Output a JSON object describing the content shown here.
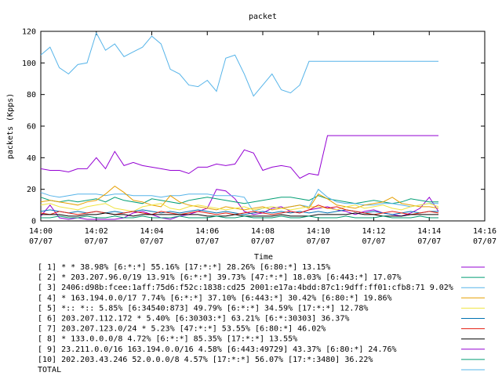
{
  "chart_data": {
    "type": "line",
    "title": "packet",
    "xlabel": "Time",
    "ylabel": "packets (Kpps)",
    "ylim": [
      0,
      120
    ],
    "yticks": [
      0,
      20,
      40,
      60,
      80,
      100,
      120
    ],
    "xlim": [
      "14:00",
      "14:16"
    ],
    "xticks": [
      {
        "time": "14:00",
        "date": "07/07"
      },
      {
        "time": "14:02",
        "date": "07/07"
      },
      {
        "time": "14:04",
        "date": "07/07"
      },
      {
        "time": "14:06",
        "date": "07/07"
      },
      {
        "time": "14:08",
        "date": "07/07"
      },
      {
        "time": "14:10",
        "date": "07/07"
      },
      {
        "time": "14:12",
        "date": "07/07"
      },
      {
        "time": "14:14",
        "date": "07/07"
      },
      {
        "time": "14:16",
        "date": "07/07"
      }
    ],
    "grid": false,
    "legend_position": "bottom",
    "x": [
      "14:00:00",
      "14:00:20",
      "14:00:40",
      "14:01:00",
      "14:01:20",
      "14:01:40",
      "14:02:00",
      "14:02:20",
      "14:02:40",
      "14:03:00",
      "14:03:20",
      "14:03:40",
      "14:04:00",
      "14:04:20",
      "14:04:40",
      "14:05:00",
      "14:05:20",
      "14:05:40",
      "14:06:00",
      "14:06:20",
      "14:06:40",
      "14:07:00",
      "14:07:20",
      "14:07:40",
      "14:08:00",
      "14:08:20",
      "14:08:40",
      "14:09:00",
      "14:09:20",
      "14:09:40",
      "14:10:00",
      "14:10:20",
      "14:10:40",
      "14:11:00",
      "14:11:20",
      "14:11:40",
      "14:12:00",
      "14:12:20",
      "14:12:40",
      "14:13:00",
      "14:13:20",
      "14:13:40",
      "14:14:00",
      "14:14:20"
    ],
    "series": [
      {
        "name": "[ 1] * * 38.98%  [6:*:*] 55.16% [17:*:*] 28.26% [6:80:*] 13.15%",
        "color": "#9400d3",
        "values": [
          3,
          10,
          2,
          1,
          2,
          1,
          1,
          1,
          1,
          2,
          5,
          6,
          4,
          2,
          1,
          3,
          4,
          6,
          8,
          20,
          19,
          14,
          6,
          4,
          5,
          8,
          9,
          6,
          5,
          7,
          8,
          9,
          7,
          6,
          4,
          6,
          7,
          5,
          4,
          3,
          5,
          8,
          15,
          6
        ]
      },
      {
        "name": "[ 2] * 203.207.96.0/19 13.91%  [6:*:*] 39.73% [47:*:*] 18.03% [6:443:*] 17.07%",
        "color": "#009e73",
        "values": [
          15,
          13,
          12,
          13,
          12,
          13,
          14,
          12,
          15,
          13,
          12,
          11,
          14,
          13,
          12,
          11,
          13,
          14,
          15,
          14,
          13,
          12,
          11,
          12,
          13,
          14,
          15,
          15,
          14,
          13,
          16,
          14,
          13,
          12,
          11,
          12,
          13,
          12,
          11,
          12,
          14,
          13,
          12,
          12
        ]
      },
      {
        "name": "[ 3] 2406:d98b:fcee:1aff:75d6:f52c:1838:cd25 2001:e17a:4bdd:87c1:9dff:ff01:cfb8:71 9.02%",
        "color": "#56b4e9",
        "values": [
          18,
          16,
          15,
          16,
          17,
          17,
          17,
          16,
          17,
          17,
          16,
          16,
          16,
          15,
          16,
          16,
          17,
          17,
          17,
          16,
          16,
          16,
          15,
          6,
          8,
          9,
          8,
          9,
          10,
          9,
          20,
          15,
          12,
          11,
          11,
          10,
          10,
          11,
          11,
          10,
          9,
          10,
          11,
          11
        ]
      },
      {
        "name": "[ 4] * 163.194.0.0/17 7.74%  [6:*:*] 37.10% [6:443:*] 30.42% [6:80:*] 19.86%",
        "color": "#e69f00",
        "values": [
          12,
          13,
          12,
          11,
          10,
          12,
          13,
          17,
          22,
          18,
          13,
          12,
          10,
          9,
          16,
          12,
          10,
          9,
          8,
          7,
          9,
          8,
          7,
          8,
          9,
          7,
          8,
          9,
          10,
          8,
          17,
          14,
          10,
          9,
          8,
          10,
          11,
          12,
          15,
          11,
          10,
          9,
          9,
          8
        ]
      },
      {
        "name": "[ 5] *:: *:: 5.85%  [6:34540:873] 49.79% [6:*:*] 34.59% [17:*:*] 12.78%",
        "color": "#f0e442",
        "values": [
          10,
          11,
          9,
          8,
          7,
          9,
          10,
          11,
          8,
          7,
          6,
          9,
          10,
          11,
          8,
          7,
          9,
          10,
          9,
          8,
          7,
          8,
          9,
          7,
          8,
          9,
          8,
          7,
          8,
          9,
          9,
          8,
          7,
          9,
          10,
          8,
          9,
          10,
          8,
          7,
          9,
          10,
          11,
          9
        ]
      },
      {
        "name": "[ 6] 203.207.112.172 * 5.40%  [6:30303:*] 63.21% [6:*:30303] 36.37%",
        "color": "#0072b2",
        "values": [
          6,
          7,
          6,
          5,
          6,
          5,
          6,
          5,
          6,
          5,
          6,
          7,
          6,
          5,
          6,
          5,
          6,
          7,
          6,
          5,
          6,
          5,
          4,
          5,
          6,
          5,
          6,
          5,
          6,
          5,
          6,
          5,
          6,
          7,
          6,
          5,
          6,
          5,
          4,
          5,
          6,
          5,
          6,
          6
        ]
      },
      {
        "name": "[ 7] 203.207.123.0/24 * 5.23%  [47:*:*] 53.55% [6:80:*] 46.02%",
        "color": "#e51e10",
        "values": [
          5,
          4,
          6,
          5,
          4,
          5,
          6,
          5,
          4,
          5,
          6,
          5,
          4,
          6,
          5,
          4,
          5,
          6,
          5,
          4,
          5,
          4,
          5,
          6,
          5,
          4,
          5,
          6,
          5,
          7,
          10,
          8,
          9,
          7,
          6,
          5,
          4,
          5,
          6,
          5,
          4,
          5,
          6,
          5
        ]
      },
      {
        "name": "[ 8] * 133.0.0.0/8 4.72%  [6:*:*] 85.35% [17:*:*] 13.55%",
        "color": "#000000",
        "values": [
          4,
          4,
          4,
          3,
          3,
          4,
          4,
          5,
          4,
          4,
          3,
          4,
          4,
          4,
          4,
          4,
          4,
          4,
          3,
          3,
          3,
          4,
          3,
          3,
          3,
          3,
          4,
          3,
          3,
          3,
          4,
          4,
          4,
          4,
          5,
          4,
          4,
          3,
          3,
          3,
          4,
          4,
          4,
          4
        ]
      },
      {
        "name": "[ 9] 23.211.0.0/16 163.194.0.0/16 4.58%  [6:443:49729] 43.37% [6:80:*] 24.76%",
        "color": "#9400d3",
        "values": [
          33,
          32,
          32,
          31,
          33,
          33,
          40,
          33,
          44,
          35,
          37,
          35,
          34,
          33,
          32,
          32,
          30,
          34,
          34,
          36,
          35,
          36,
          45,
          43,
          32,
          34,
          35,
          34,
          27,
          30,
          29,
          54,
          54,
          54,
          54,
          54,
          54,
          54,
          54,
          54,
          54,
          54,
          54,
          54
        ]
      },
      {
        "name": "[10] 202.203.43.246 52.0.0.0/8 4.57%  [17:*:*] 56.07% [17:*:3480] 36.22%",
        "color": "#009e73",
        "values": [
          2,
          2,
          3,
          2,
          2,
          3,
          2,
          2,
          3,
          2,
          2,
          3,
          2,
          2,
          2,
          3,
          2,
          2,
          2,
          3,
          2,
          2,
          3,
          2,
          2,
          2,
          3,
          2,
          2,
          3,
          2,
          2,
          2,
          3,
          2,
          2,
          2,
          3,
          2,
          2,
          2,
          3,
          2,
          2
        ]
      },
      {
        "name": "TOTAL",
        "color": "#56b4e9",
        "values": [
          105,
          110,
          97,
          93,
          99,
          100,
          119,
          108,
          112,
          104,
          107,
          110,
          117,
          112,
          96,
          93,
          86,
          85,
          89,
          82,
          103,
          105,
          93,
          79,
          86,
          93,
          83,
          81,
          86,
          101,
          101,
          101,
          101,
          101,
          101,
          101,
          101,
          101,
          101,
          101,
          101,
          101,
          101,
          101
        ]
      }
    ]
  }
}
